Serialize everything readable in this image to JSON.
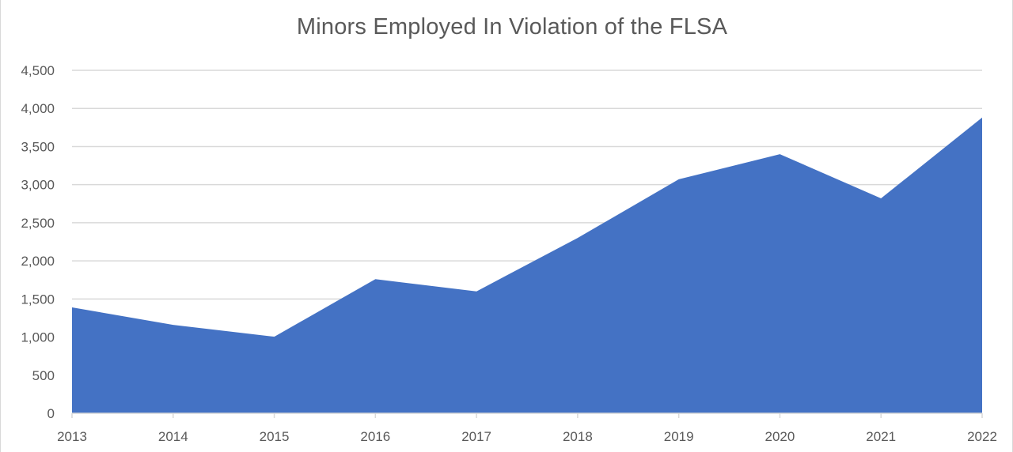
{
  "chart_data": {
    "type": "area",
    "title": "Minors Employed In Violation of the FLSA",
    "xlabel": "",
    "ylabel": "",
    "categories": [
      "2013",
      "2014",
      "2015",
      "2016",
      "2017",
      "2018",
      "2019",
      "2020",
      "2021",
      "2022"
    ],
    "series": [
      {
        "values": [
          1390,
          1160,
          1005,
          1760,
          1600,
          2300,
          3070,
          3400,
          2820,
          3880
        ],
        "color": "#4472c4"
      }
    ],
    "ylim": [
      0,
      4500
    ],
    "yticks": [
      0,
      500,
      1000,
      1500,
      2000,
      2500,
      3000,
      3500,
      4000,
      4500
    ],
    "ytick_labels": [
      "0",
      "500",
      "1,000",
      "1,500",
      "2,000",
      "2,500",
      "3,000",
      "3,500",
      "4,000",
      "4,500"
    ],
    "grid": true,
    "legend": "none"
  }
}
